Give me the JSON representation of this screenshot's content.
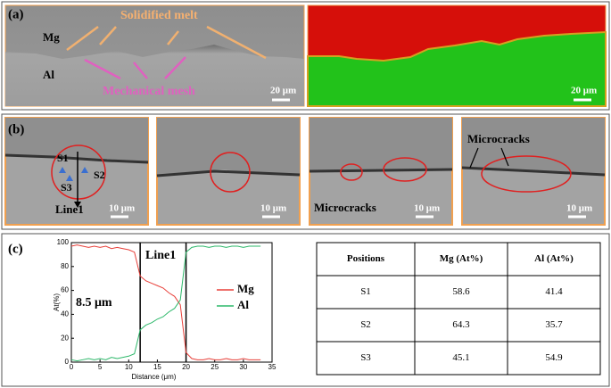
{
  "panel_a": {
    "label": "(a)",
    "solidified_melt": "Solidified melt",
    "mg": "Mg",
    "al": "Al",
    "mechanical_mesh": "Mechanical mesh",
    "scale_bars": [
      "20 μm",
      "20 μm"
    ]
  },
  "panel_b": {
    "label": "(b)",
    "points": [
      "S1",
      "S2",
      "S3"
    ],
    "line": "Line1",
    "scale_bars": [
      "10 μm",
      "10 μm",
      "10 μm",
      "10 μm"
    ],
    "microcracks": [
      "Microcracks",
      "Microcracks"
    ]
  },
  "panel_c": {
    "label": "(c)",
    "table": {
      "header": [
        "Positions",
        "Mg (At%)",
        "Al (At%)"
      ],
      "rows": [
        [
          "S1",
          58.6,
          41.4
        ],
        [
          "S2",
          64.3,
          35.7
        ],
        [
          "S3",
          45.1,
          54.9
        ]
      ]
    }
  },
  "chart_data": {
    "type": "line",
    "xlabel": "Distance (μm)",
    "ylabel": "At(%)",
    "x": [
      0,
      1,
      2,
      3,
      4,
      5,
      6,
      7,
      8,
      9,
      10,
      11,
      12,
      13,
      14,
      15,
      16,
      17,
      18,
      19,
      20,
      21,
      22,
      23,
      24,
      25,
      26,
      27,
      28,
      29,
      30,
      31,
      32,
      33
    ],
    "series": [
      {
        "name": "Mg",
        "color": "#e8403a",
        "values": [
          97,
          98,
          97,
          96,
          97,
          96,
          97,
          95,
          96,
          95,
          94,
          92,
          72,
          68,
          66,
          64,
          62,
          58,
          55,
          48,
          8,
          3,
          2,
          2,
          3,
          2,
          2,
          3,
          2,
          2,
          3,
          2,
          2,
          2
        ]
      },
      {
        "name": "Al",
        "color": "#2db86a",
        "values": [
          2,
          1,
          2,
          3,
          2,
          3,
          2,
          4,
          3,
          4,
          5,
          7,
          27,
          31,
          33,
          36,
          38,
          42,
          45,
          52,
          92,
          96,
          97,
          97,
          96,
          97,
          97,
          96,
          97,
          97,
          96,
          97,
          97,
          97
        ]
      }
    ],
    "xlim": [
      0,
      35
    ],
    "ylim": [
      0,
      100
    ],
    "xticks": [
      0,
      5,
      10,
      15,
      20,
      25,
      30,
      35
    ],
    "yticks": [
      0,
      20,
      40,
      60,
      80,
      100
    ],
    "vlines": [
      12,
      20
    ],
    "annotations": [
      "Line1",
      "8.5 μm"
    ]
  }
}
